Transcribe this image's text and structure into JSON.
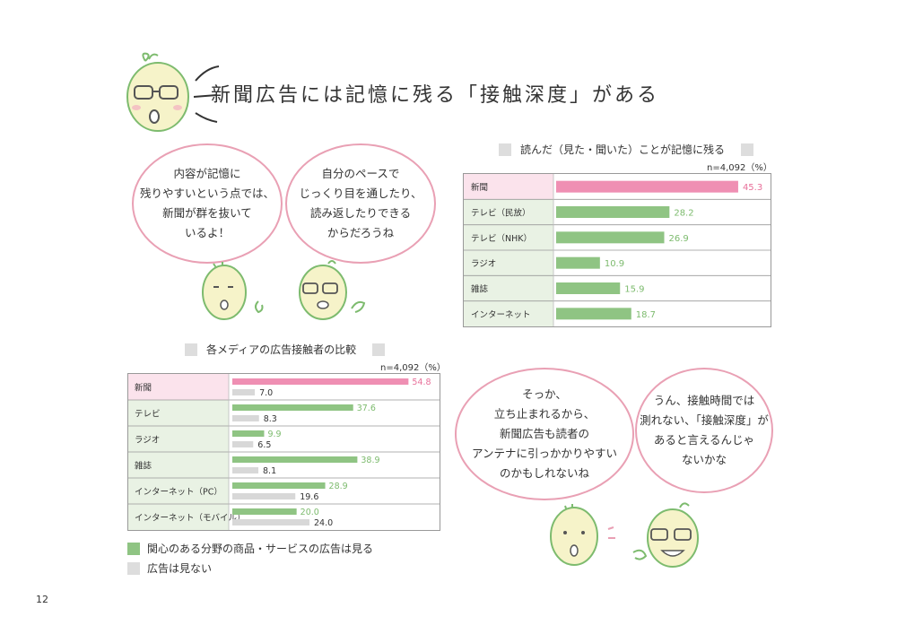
{
  "title": "新聞広告には記憶に残る「接触深度」がある",
  "bubbles": {
    "b1": "内容が記憶に\n残りやすいという点では、\n新聞が群を抜いて\nいるよ！",
    "b2": "自分のペースで\nじっくり目を通したり、\n読み返したりできる\nからだろうね",
    "b3": "そっか、\n立ち止まれるから、\n新聞広告も読者の\nアンテナに引っかかりやすい\nのかもしれないね",
    "b4": "うん、接触時間では\n測れない、「接触深度」が\nあると言えるんじゃ\nないかな"
  },
  "page_number": "12",
  "chart_data": [
    {
      "type": "bar",
      "title": "読んだ（見た・聞いた）ことが記憶に残る",
      "note": "n=4,092（%）",
      "categories": [
        "新聞",
        "テレビ（民放）",
        "テレビ（NHK）",
        "ラジオ",
        "雑誌",
        "インターネット"
      ],
      "values": [
        45.3,
        28.2,
        26.9,
        10.9,
        15.9,
        18.7
      ],
      "xlim": [
        0,
        50
      ],
      "colors": {
        "highlight": "#ef8fb3",
        "bar": "#8fc483",
        "highlight_label": "#e8709a",
        "label": "#7dbb6e"
      }
    },
    {
      "type": "bar",
      "title": "各メディアの広告接触者の比較",
      "note": "n=4,092（%）",
      "categories": [
        "新聞",
        "テレビ",
        "ラジオ",
        "雑誌",
        "インターネット（PC）",
        "インターネット（モバイル）"
      ],
      "series": [
        {
          "name": "関心のある分野の商品・サービスの広告は見る",
          "values": [
            54.8,
            37.6,
            9.9,
            38.9,
            28.9,
            20.0
          ]
        },
        {
          "name": "広告は見ない",
          "values": [
            7.0,
            8.3,
            6.5,
            8.1,
            19.6,
            24.0
          ]
        }
      ],
      "xlim": [
        0,
        60
      ],
      "colors": {
        "highlight": "#ef8fb3",
        "bar": "#8fc483",
        "gray": "#d8d8d8",
        "highlight_label": "#e8709a",
        "label": "#7dbb6e"
      }
    }
  ]
}
